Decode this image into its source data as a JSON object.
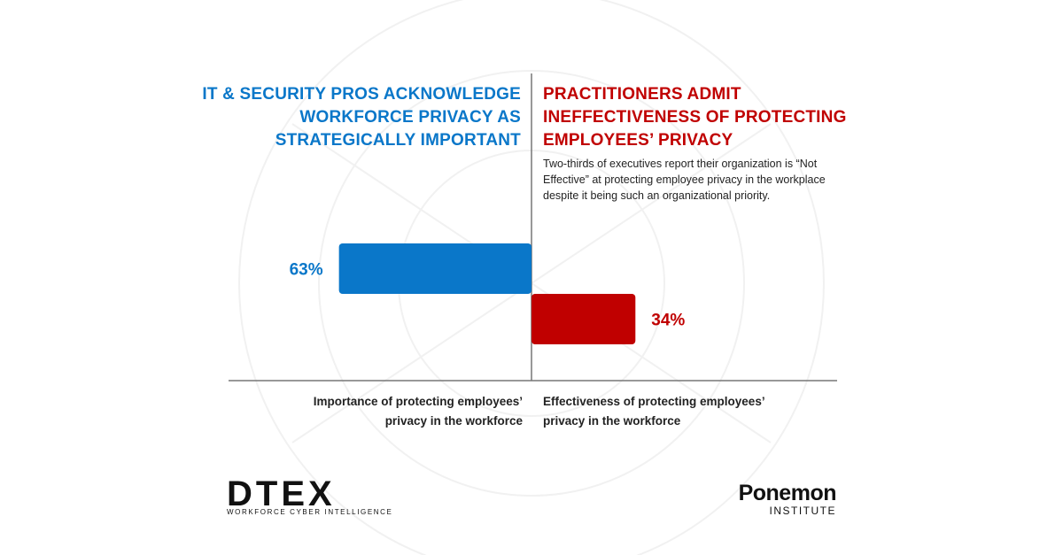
{
  "chart_data": {
    "type": "diverging-bar",
    "categories": [
      "Importance of protecting employees’ privacy in the workforce",
      "Effectiveness of protecting employees’ privacy in the workforce"
    ],
    "values": [
      63,
      34
    ],
    "value_labels": [
      "63%",
      "34%"
    ],
    "colors": [
      "#0a77c9",
      "#c00000"
    ]
  },
  "headings": {
    "left": [
      "IT & SECURITY PROS ACKNOWLEDGE",
      "WORKFORCE PRIVACY AS",
      "STRATEGICALLY IMPORTANT"
    ],
    "right": [
      "PRACTITIONERS ADMIT",
      "INEFFECTIVENESS OF PROTECTING",
      "EMPLOYEES’ PRIVACY"
    ],
    "note": "Two-thirds of executives report their organization is “Not Effective” at protecting employee privacy in the workplace despite it being such an organizational priority."
  },
  "logos": {
    "dtex": "DTEX",
    "dtex_tagline": "WORKFORCE CYBER INTELLIGENCE",
    "ponemon": "Ponemon",
    "ponemon_sub": "INSTITUTE"
  }
}
